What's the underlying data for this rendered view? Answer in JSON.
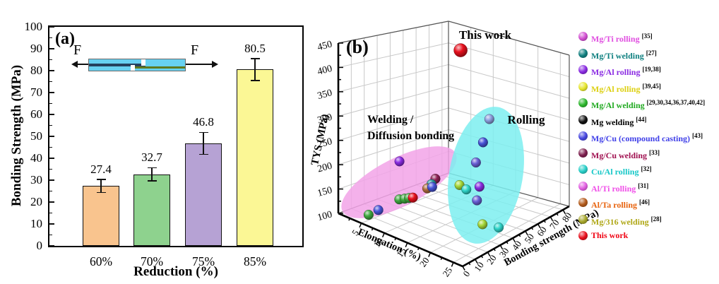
{
  "chart_data": [
    {
      "type": "bar",
      "tag": "(a)",
      "ylabel": "Bonding Strength (MPa)",
      "xlabel": "Reduction (%)",
      "force_label": "F",
      "categories": [
        "60%",
        "70%",
        "75%",
        "85%"
      ],
      "values": [
        27.4,
        32.7,
        46.8,
        80.5
      ],
      "value_labels": [
        "27.4",
        "32.7",
        "46.8",
        "80.5"
      ],
      "errors": [
        3.0,
        3.0,
        5.0,
        5.0
      ],
      "bar_colors": [
        "#f9c48e",
        "#8ed28e",
        "#b6a2d4",
        "#fbf795"
      ],
      "ylim": [
        0,
        100
      ],
      "ytick_step": 10,
      "ytick_minor_step": 5
    },
    {
      "type": "scatter3d",
      "tag": "(b)",
      "axes": {
        "z": {
          "label": "TYS (MPa)",
          "min": 100,
          "max": 450,
          "tick_step": 50,
          "minor_step": 25
        },
        "x": {
          "label": "Elongation (%)",
          "min": 0,
          "max": 27,
          "ticks": [
            5,
            10,
            15,
            20,
            25
          ],
          "minor_step": 2.5
        },
        "y": {
          "label": "Bonding strength (MPa)",
          "min": 0,
          "max": 85,
          "ticks": [
            0,
            10,
            20,
            30,
            40,
            50,
            60,
            70,
            80
          ],
          "minor_step": 5
        }
      },
      "annotations": {
        "this_work": "This work",
        "welding_line1": "Welding /",
        "welding_line2": "Diffusion bonding",
        "rolling": "Rolling"
      },
      "regions": [
        {
          "name": "Welding / Diffusion bonding",
          "color": "#f2a3e8"
        },
        {
          "name": "Rolling",
          "color": "#7deef0"
        }
      ],
      "point_colors": {
        "periwinkle": "#8fa0e0",
        "blue": "#4753d8",
        "slateblue": "#6a5fd6",
        "purple": "#8a2be2",
        "yellowgreen": "#a6d838",
        "cyan": "#30d6ca",
        "maroon": "#8e2055",
        "brown": "#ad6b3a",
        "teal": "#259595",
        "green": "#3fa83f",
        "red": "#e8101d"
      },
      "points": [
        {
          "group": "welding",
          "color": "purple",
          "elongation": 10.5,
          "bonding_strength": 10,
          "tys": 240
        },
        {
          "group": "welding",
          "color": "maroon",
          "elongation": 17.5,
          "bonding_strength": 13,
          "tys": 228
        },
        {
          "group": "welding",
          "color": "teal",
          "elongation": 16.5,
          "bonding_strength": 13.5,
          "tys": 212
        },
        {
          "group": "welding",
          "color": "brown",
          "elongation": 16,
          "bonding_strength": 12,
          "tys": 203
        },
        {
          "group": "welding",
          "color": "blue",
          "elongation": 16.8,
          "bonding_strength": 13,
          "tys": 208
        },
        {
          "group": "welding",
          "color": "green",
          "elongation": 11.3,
          "bonding_strength": 7,
          "tys": 167
        },
        {
          "group": "welding",
          "color": "green",
          "elongation": 12.2,
          "bonding_strength": 8,
          "tys": 171
        },
        {
          "group": "welding",
          "color": "green",
          "elongation": 13,
          "bonding_strength": 8.5,
          "tys": 175
        },
        {
          "group": "welding",
          "color": "red",
          "elongation": 13.7,
          "bonding_strength": 9,
          "tys": 178
        },
        {
          "group": "welding",
          "color": "green",
          "elongation": 5.6,
          "bonding_strength": 3.5,
          "tys": 116
        },
        {
          "group": "welding",
          "color": "blue",
          "elongation": 7.3,
          "bonding_strength": 5,
          "tys": 131
        },
        {
          "group": "rolling",
          "color": "periwinkle",
          "elongation": 21,
          "bonding_strength": 43,
          "tys": 335
        },
        {
          "group": "rolling",
          "color": "blue",
          "elongation": 21,
          "bonding_strength": 38,
          "tys": 290
        },
        {
          "group": "rolling",
          "color": "slateblue",
          "elongation": 20,
          "bonding_strength": 36,
          "tys": 245
        },
        {
          "group": "rolling",
          "color": "yellowgreen",
          "elongation": 17.5,
          "bonding_strength": 32,
          "tys": 192
        },
        {
          "group": "rolling",
          "color": "cyan",
          "elongation": 19,
          "bonding_strength": 32,
          "tys": 188
        },
        {
          "group": "rolling",
          "color": "purple",
          "elongation": 20.5,
          "bonding_strength": 37,
          "tys": 193
        },
        {
          "group": "rolling",
          "color": "slateblue",
          "elongation": 20.5,
          "bonding_strength": 35,
          "tys": 166
        },
        {
          "group": "rolling",
          "color": "yellowgreen",
          "elongation": 22,
          "bonding_strength": 34,
          "tys": 121
        },
        {
          "group": "rolling",
          "color": "cyan",
          "elongation": 25,
          "bonding_strength": 36,
          "tys": 122
        },
        {
          "group": "this-work",
          "color": "red",
          "elongation": 4,
          "bonding_strength": 80.5,
          "tys": 398
        }
      ],
      "legend": [
        {
          "label": "Mg/Ti rolling",
          "ref": "[35]",
          "color": "#d24fd2",
          "text_color": "#e04fe0"
        },
        {
          "label": "Mg/Ti welding",
          "ref": "[27]",
          "color": "#128080",
          "text_color": "#0f8080"
        },
        {
          "label": "Mg/Al rolling",
          "ref": "[19,38]",
          "color": "#8a2be2",
          "text_color": "#8a2be2"
        },
        {
          "label": "Mg/Al rolling",
          "ref": "[39,45]",
          "color": "#e6e62e",
          "text_color": "#ddd012"
        },
        {
          "label": "Mg/Al welding",
          "ref": "[29,30,34,36,37,40,42]",
          "color": "#2eb82e",
          "text_color": "#21aa21"
        },
        {
          "label": "Mg welding",
          "ref": "[44]",
          "color": "#111111",
          "text_color": "#000000"
        },
        {
          "label": "Mg/Cu (compound casting)",
          "ref": "[43]",
          "color": "#4848e0",
          "text_color": "#4040e8"
        },
        {
          "label": "Mg/Cu welding",
          "ref": "[33]",
          "color": "#7d1f4e",
          "text_color": "#a01050"
        },
        {
          "label": "Cu/Al rolling",
          "ref": "[32]",
          "color": "#28cfc8",
          "text_color": "#18c8c8"
        },
        {
          "label": "Al/Ti rolling",
          "ref": "[31]",
          "color": "#e25fe2",
          "text_color": "#f050e8"
        },
        {
          "label": "Al/Ta rolling",
          "ref": "[46]",
          "color": "#b35b1b",
          "text_color": "#e8640f"
        },
        {
          "label": "Mg/316 welding",
          "ref": "[28]",
          "color": "#a6a62a",
          "text_color": "#b0a818"
        },
        {
          "label": "This work",
          "ref": "",
          "color": "#e8101d",
          "text_color": "#f00514"
        }
      ]
    }
  ]
}
